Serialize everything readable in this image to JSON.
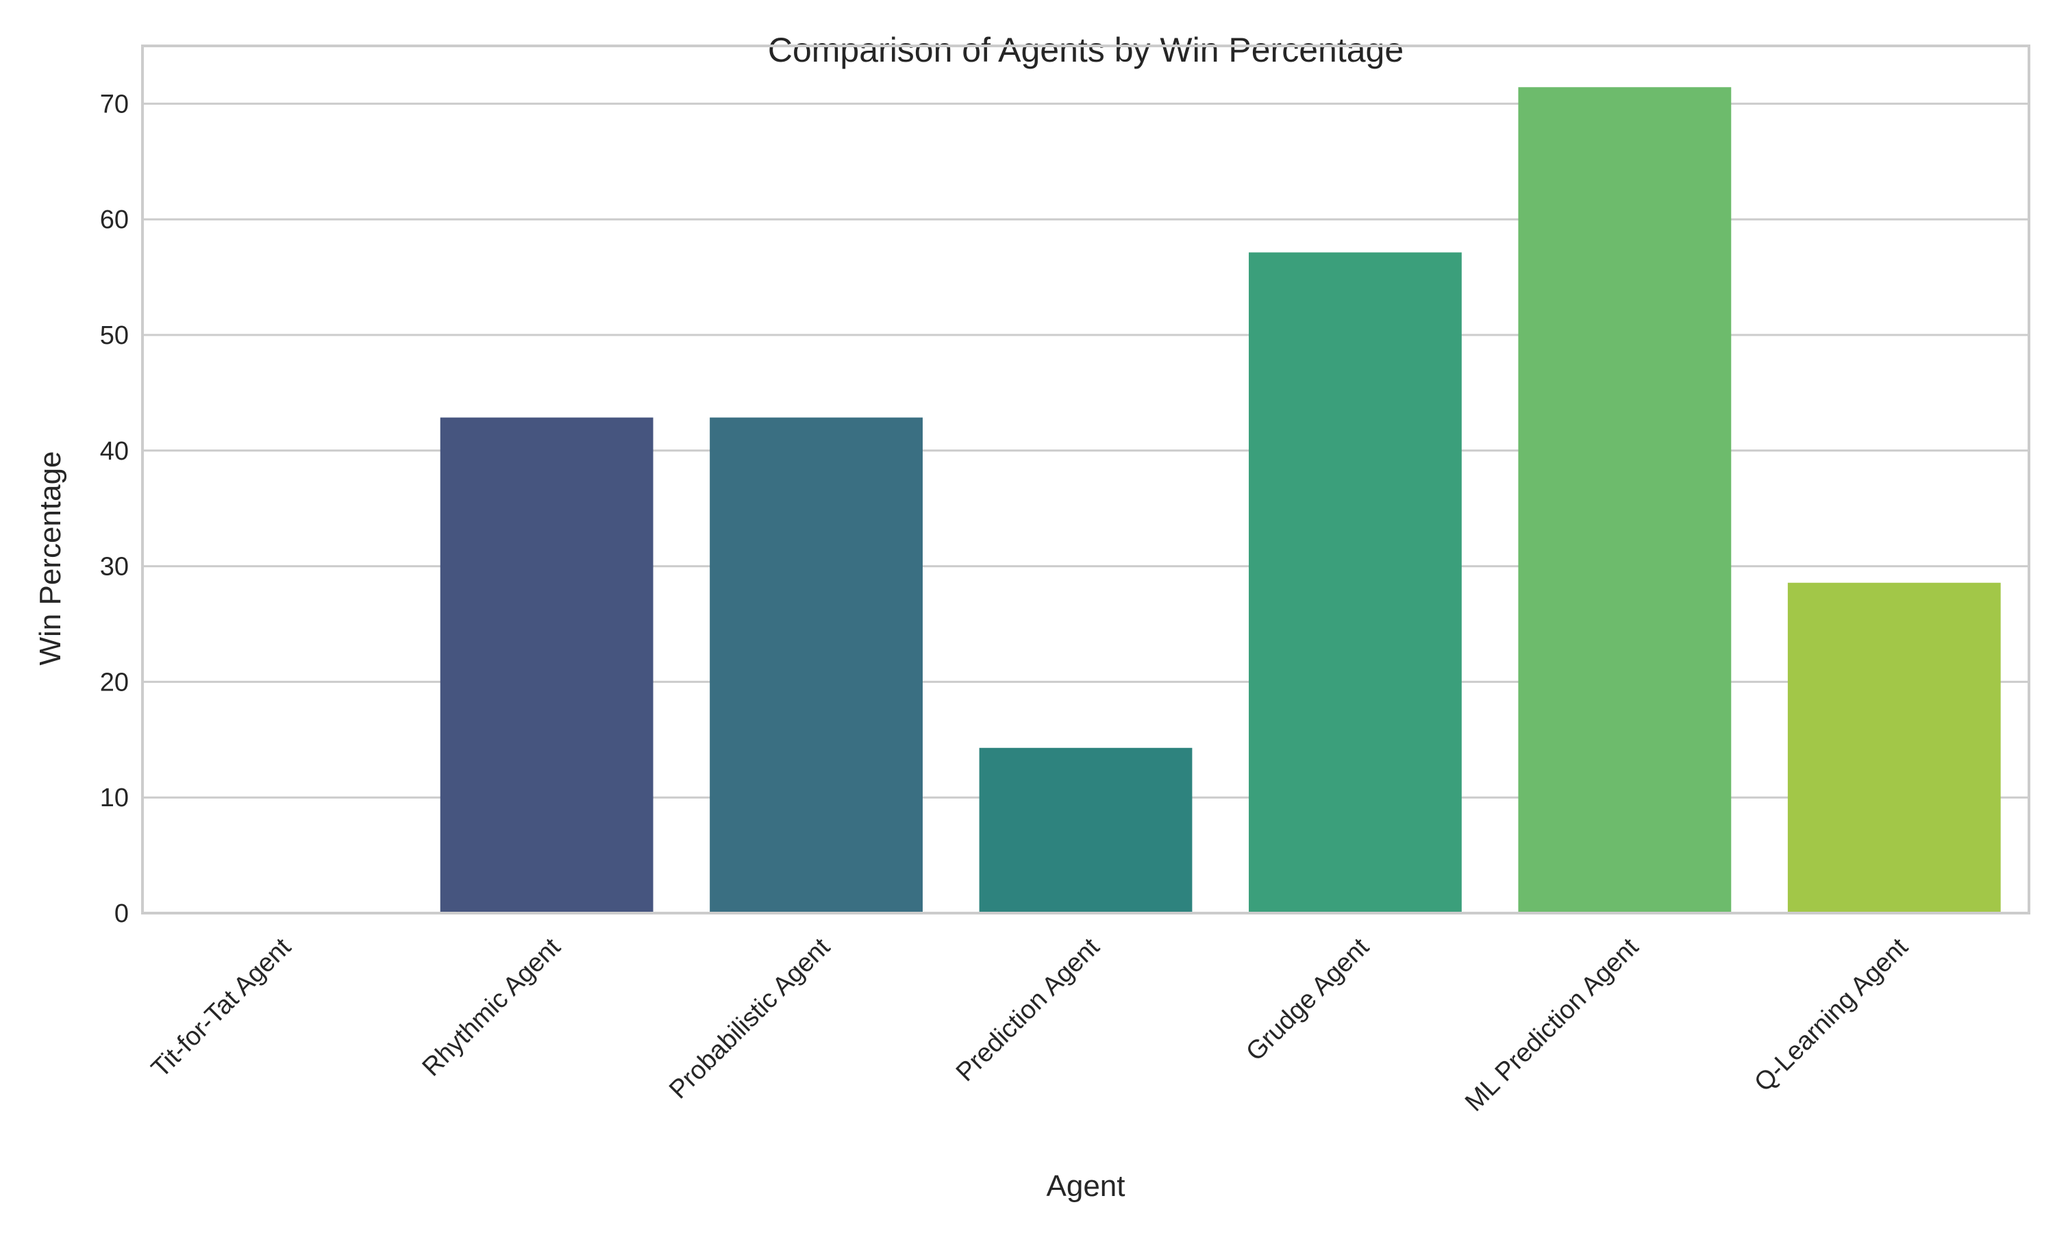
{
  "chart_data": {
    "type": "bar",
    "title": "Comparison of Agents by Win Percentage",
    "xlabel": "Agent",
    "ylabel": "Win Percentage",
    "ylim": [
      0,
      75
    ],
    "yticks": [
      0,
      10,
      20,
      30,
      40,
      50,
      60,
      70
    ],
    "grid": "horizontal",
    "legend": "none",
    "categories": [
      "Tit-for-Tat Agent",
      "Rhythmic Agent",
      "Probabilistic Agent",
      "Prediction Agent",
      "Grudge Agent",
      "ML Prediction Agent",
      "Q-Learning Agent"
    ],
    "values": [
      0,
      42.86,
      42.86,
      14.29,
      57.14,
      71.43,
      28.57
    ],
    "colors": [
      "#472d7b",
      "#46557f",
      "#3a6f82",
      "#2e837e",
      "#3b9f7b",
      "#6dbb6c",
      "#a2c748"
    ]
  }
}
